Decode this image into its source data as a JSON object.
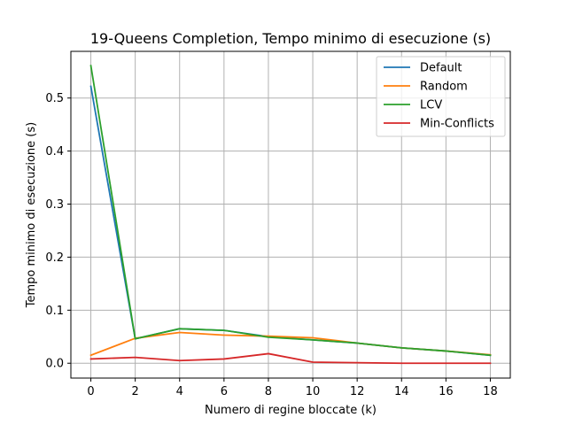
{
  "chart_data": {
    "type": "line",
    "title": "19-Queens Completion, Tempo minimo di esecuzione (s)",
    "xlabel": "Numero di regine bloccate (k)",
    "ylabel": "Tempo minimo di esecuzione (s)",
    "x": [
      0,
      2,
      4,
      6,
      8,
      10,
      12,
      14,
      16,
      18
    ],
    "xlim": [
      -0.9,
      18.9
    ],
    "ylim": [
      -0.028,
      0.588
    ],
    "xticks": [
      0,
      2,
      4,
      6,
      8,
      10,
      12,
      14,
      16,
      18
    ],
    "xtick_labels": [
      "0",
      "2",
      "4",
      "6",
      "8",
      "10",
      "12",
      "14",
      "16",
      "18"
    ],
    "yticks": [
      0.0,
      0.1,
      0.2,
      0.3,
      0.4,
      0.5
    ],
    "ytick_labels": [
      "0.0",
      "0.1",
      "0.2",
      "0.3",
      "0.4",
      "0.5"
    ],
    "grid": true,
    "legend_position": "top-right",
    "series": [
      {
        "name": "Default",
        "color": "#1f77b4",
        "values": [
          0.522,
          0.046,
          0.065,
          0.062,
          0.05,
          0.044,
          0.038,
          0.029,
          0.023,
          0.015
        ]
      },
      {
        "name": "Random",
        "color": "#ff7f0e",
        "values": [
          0.015,
          0.047,
          0.058,
          0.053,
          0.051,
          0.048,
          0.038,
          0.029,
          0.023,
          0.016
        ]
      },
      {
        "name": "LCV",
        "color": "#2ca02c",
        "values": [
          0.561,
          0.046,
          0.065,
          0.062,
          0.049,
          0.044,
          0.038,
          0.029,
          0.023,
          0.015
        ]
      },
      {
        "name": "Min-Conflicts",
        "color": "#d62728",
        "values": [
          0.008,
          0.011,
          0.005,
          0.008,
          0.018,
          0.002,
          0.001,
          0.0,
          0.0,
          0.0
        ]
      }
    ]
  }
}
